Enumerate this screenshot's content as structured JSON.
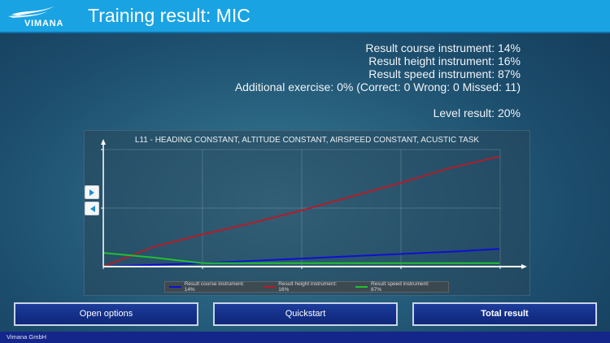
{
  "header": {
    "logo_text": "VIMANA",
    "title": "Training result: MIC",
    "bg_color": "#1aa3e3"
  },
  "results": {
    "course": "Result course instrument: 14%",
    "height": "Result height instrument: 16%",
    "speed": "Result speed instrument: 87%",
    "additional": "Additional exercise: 0% (Correct: 0 Wrong: 0 Missed: 11)",
    "level": "Level result: 20%"
  },
  "chart": {
    "title": "L11 - HEADING CONSTANT, ALTITUDE CONSTANT, AIRSPEED CONSTANT, ACUSTIC TASK",
    "nav_next_icon": "play-right-icon",
    "nav_prev_icon": "play-left-icon"
  },
  "chart_data": {
    "type": "line",
    "title": "L11 - HEADING CONSTANT, ALTITUDE CONSTANT, AIRSPEED CONSTANT, ACUSTIC TASK",
    "xlabel": "",
    "ylabel": "",
    "grid": true,
    "legend_position": "bottom",
    "x": [
      0,
      0.5,
      1,
      1.5,
      2,
      2.5,
      3,
      3.5,
      4
    ],
    "series": [
      {
        "name": "Result course instrument: 14%",
        "color": "#1010d0",
        "values": [
          0,
          1.5,
          3,
          5,
          7,
          9,
          11,
          13,
          15.5
        ]
      },
      {
        "name": "Result height instrument: 16%",
        "color": "#b01e2a",
        "values": [
          0,
          17,
          28,
          38,
          49,
          61,
          73,
          86,
          96
        ]
      },
      {
        "name": "Result speed instrument: 87%",
        "color": "#20c030",
        "values": [
          12,
          8,
          3,
          3,
          3,
          3,
          3,
          3,
          3
        ]
      }
    ],
    "ylim": [
      0,
      110
    ],
    "xlim": [
      0,
      4.2
    ]
  },
  "legend": {
    "items": [
      {
        "label": "Result course instrument: 14%",
        "color": "#1010d0"
      },
      {
        "label": "Result height instrument: 16%",
        "color": "#b01e2a"
      },
      {
        "label": "Result speed instrument: 87%",
        "color": "#20c030"
      }
    ]
  },
  "buttons": {
    "open_options": "Open options",
    "quickstart": "Quickstart",
    "total_result": "Total result"
  },
  "footer": {
    "company": "Vimana GmbH"
  }
}
